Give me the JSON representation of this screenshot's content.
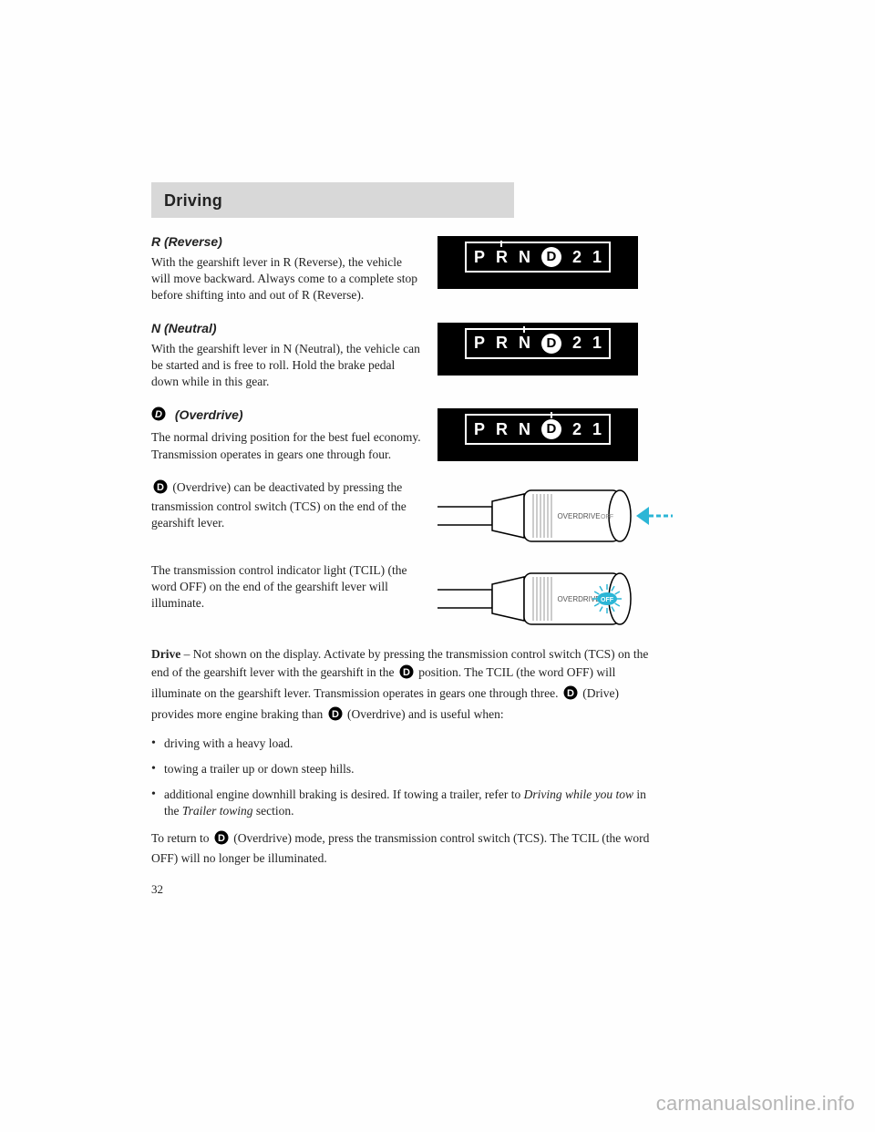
{
  "header": {
    "title": "Driving"
  },
  "sections": {
    "reverse": {
      "heading": "R (Reverse)",
      "body": "With the gearshift lever in R (Reverse), the vehicle will move backward. Always come to a complete stop before shifting into and out of R (Reverse).",
      "indicator": {
        "letters": [
          "P",
          "R",
          "N",
          "D",
          "2",
          "1"
        ],
        "pointer_index": 1,
        "d_circle_index": 3
      }
    },
    "neutral": {
      "heading": "N (Neutral)",
      "body": "With the gearshift lever in N (Neutral), the vehicle can be started and is free to roll. Hold the brake pedal down while in this gear.",
      "indicator": {
        "letters": [
          "P",
          "R",
          "N",
          "D",
          "2",
          "1"
        ],
        "pointer_index": 2,
        "d_circle_index": 3
      }
    },
    "overdrive": {
      "heading": "(Overdrive)",
      "body": "The normal driving position for the best fuel economy. Transmission operates in gears one through four.",
      "indicator": {
        "letters": [
          "P",
          "R",
          "N",
          "D",
          "2",
          "1"
        ],
        "pointer_index": 3,
        "d_circle_index": 3
      }
    },
    "tcs1": {
      "body_before_icon": "",
      "body_after_icon": " (Overdrive) can be deactivated by pressing the transmission control switch (TCS) on the end of the gearshift lever.",
      "lever": {
        "label_overdrive": "OVERDRIVE",
        "label_off": "OFF",
        "off_highlighted": false,
        "show_arrow": true,
        "arrow_color": "#2cb6d6"
      }
    },
    "tcs2": {
      "body": "The transmission control indicator light (TCIL) (the word OFF) on the end of the gearshift lever will illuminate.",
      "lever": {
        "label_overdrive": "OVERDRIVE",
        "label_off": "OFF",
        "off_highlighted": true,
        "off_color": "#2cb6d6",
        "show_arrow": false
      }
    }
  },
  "drive": {
    "label": "Drive",
    "p1_a": " – Not shown on the display. Activate by pressing the transmission control switch (TCS) on the end of the gearshift lever with the gearshift in the ",
    "p1_b": " position. The TCIL (the word OFF) will illuminate on the gearshift lever. Transmission operates in gears one through three. ",
    "p1_c": " (Drive) provides more engine braking than ",
    "p1_d": " (Overdrive) and is useful when:",
    "bullets": [
      "driving with a heavy load.",
      "towing a trailer up or down steep hills.",
      "additional engine downhill braking is desired. If towing a trailer, refer to Driving while you tow in the Trailer towing section."
    ],
    "p2_a": "To return to ",
    "p2_b": " (Overdrive) mode, press the transmission control switch (TCS). The TCIL (the word OFF) will no longer be illuminated."
  },
  "page_number": "32",
  "watermark": "carmanualsonline.info",
  "colors": {
    "header_bg": "#d8d8d8",
    "panel_bg": "#000000",
    "panel_text": "#ffffff",
    "cyan": "#2cb6d6"
  }
}
